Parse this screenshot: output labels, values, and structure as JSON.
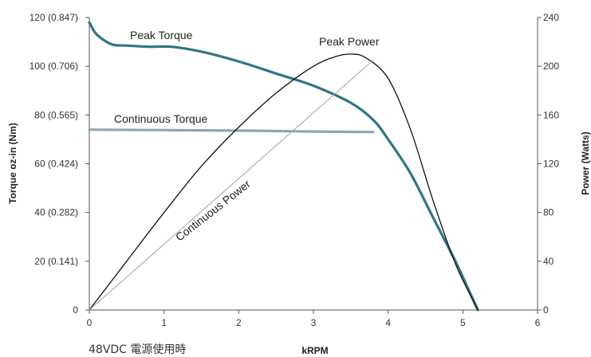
{
  "chart_data": {
    "type": "line",
    "x_axis": {
      "label": "kRPM",
      "range": [
        0,
        6
      ],
      "ticks": [
        {
          "value": 0,
          "label": "0"
        },
        {
          "value": 1,
          "label": "1"
        },
        {
          "value": 2,
          "label": "2"
        },
        {
          "value": 3,
          "label": "3"
        },
        {
          "value": 4,
          "label": "4"
        },
        {
          "value": 5,
          "label": "5"
        },
        {
          "value": 6,
          "label": "6"
        }
      ]
    },
    "y_axis_left": {
      "label": "Torque oz-in (Nm)",
      "range": [
        0,
        120
      ],
      "ticks": [
        {
          "value": 0,
          "label": "0"
        },
        {
          "value": 20,
          "label": "20 (0.141)"
        },
        {
          "value": 40,
          "label": "40 (0.282)"
        },
        {
          "value": 60,
          "label": "60 (0.424)"
        },
        {
          "value": 80,
          "label": "80 (0.565)"
        },
        {
          "value": 100,
          "label": "100 (0.706)"
        },
        {
          "value": 120,
          "label": "120 (0.847)"
        }
      ]
    },
    "y_axis_right": {
      "label": "Power (Watts)",
      "range": [
        0,
        240
      ],
      "ticks": [
        {
          "value": 0,
          "label": "0"
        },
        {
          "value": 40,
          "label": "40"
        },
        {
          "value": 80,
          "label": "80"
        },
        {
          "value": 120,
          "label": "120"
        },
        {
          "value": 160,
          "label": "160"
        },
        {
          "value": 200,
          "label": "200"
        },
        {
          "value": 240,
          "label": "240"
        }
      ]
    },
    "grid": false,
    "series": [
      {
        "name": "Peak Torque",
        "axis": "left",
        "color": "#2e7782",
        "x": [
          0,
          0.1,
          0.3,
          0.5,
          0.8,
          1.1,
          1.5,
          2.0,
          2.5,
          3.0,
          3.5,
          3.8,
          4.0,
          4.3,
          4.6,
          4.9,
          5.2
        ],
        "y": [
          118,
          113,
          109,
          108.5,
          108,
          108,
          106,
          102,
          97,
          92,
          85,
          78,
          70,
          56,
          38,
          20,
          0
        ]
      },
      {
        "name": "Continuous Torque",
        "axis": "left",
        "color": "#8fa6ae",
        "x": [
          0,
          1,
          2,
          3,
          3.8
        ],
        "y": [
          74,
          73.8,
          73.6,
          73.2,
          73
        ]
      },
      {
        "name": "Peak Power",
        "axis": "right",
        "color": "#111111",
        "x": [
          0,
          0.5,
          1,
          1.5,
          2,
          2.5,
          3,
          3.3,
          3.5,
          3.7,
          4,
          4.3,
          4.6,
          4.9,
          5.2
        ],
        "y": [
          0,
          40,
          80,
          118,
          150,
          178,
          200,
          208,
          210,
          207,
          190,
          148,
          90,
          38,
          0
        ]
      },
      {
        "name": "Continuous Power",
        "axis": "right",
        "color": "#aaaaaa",
        "x": [
          0,
          3.8
        ],
        "y": [
          0,
          205
        ]
      }
    ]
  },
  "footnote": "48VDC 電源使用時"
}
